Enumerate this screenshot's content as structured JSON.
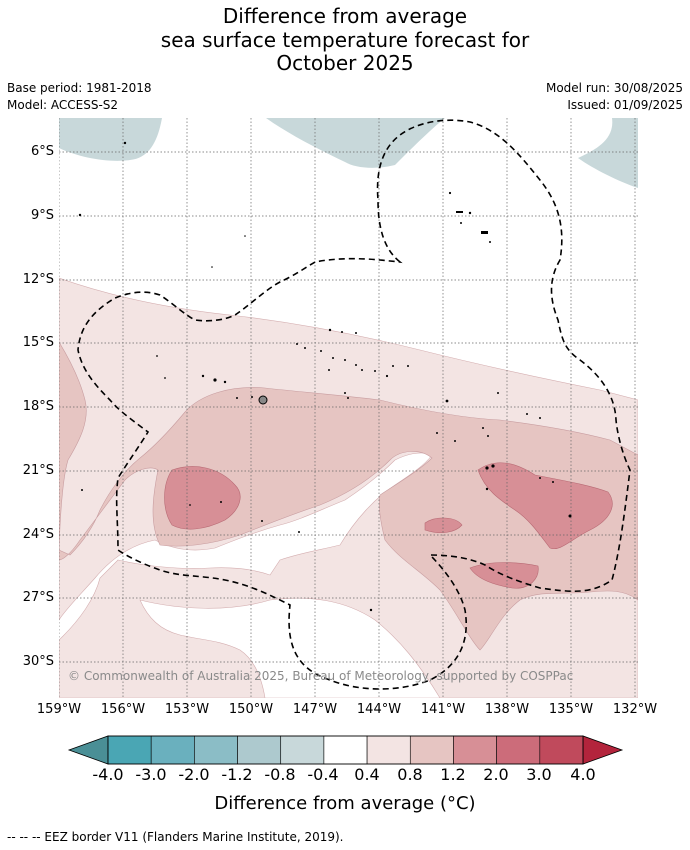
{
  "header": {
    "title_line1": "Difference from average",
    "title_line2": "sea surface temperature forecast for",
    "title_line3": "October 2025",
    "base_period": "Base period: 1981-2018",
    "model": "Model: ACCESS-S2",
    "model_run": "Model run: 30/08/2025",
    "issued": "Issued: 01/09/2025"
  },
  "axes": {
    "lat_labels": [
      "6°S",
      "9°S",
      "12°S",
      "15°S",
      "18°S",
      "21°S",
      "24°S",
      "27°S",
      "30°S"
    ],
    "lon_labels": [
      "159°W",
      "156°W",
      "153°W",
      "150°W",
      "147°W",
      "144°W",
      "141°W",
      "138°W",
      "135°W",
      "132°W"
    ]
  },
  "map": {
    "copyright": "© Commonwealth of Australia 2025, Bureau of Meteorology, supported by COSPPac",
    "colors": {
      "cool_light": "#c8d8da",
      "warm_0_4": "#f3e4e3",
      "warm_0_8": "#e6c5c2",
      "warm_1_2": "#d78f96"
    }
  },
  "colorbar": {
    "ticks": [
      "-4.0",
      "-3.0",
      "-2.0",
      "-1.2",
      "-0.8",
      "-0.4",
      "0.4",
      "0.8",
      "1.2",
      "2.0",
      "3.0",
      "4.0"
    ],
    "colors": [
      "#4a8f96",
      "#4aa6b4",
      "#6ab0be",
      "#8bbdc6",
      "#adc9ce",
      "#c8d8da",
      "#ffffff",
      "#f3e4e3",
      "#e6c5c2",
      "#d78f96",
      "#cc6c7a",
      "#c04a5c",
      "#b3243c"
    ],
    "label": "Difference from average (°C)"
  },
  "footer": {
    "eez_legend": "--  --  -- EEZ border V11 (Flanders Marine Institute, 2019)."
  }
}
